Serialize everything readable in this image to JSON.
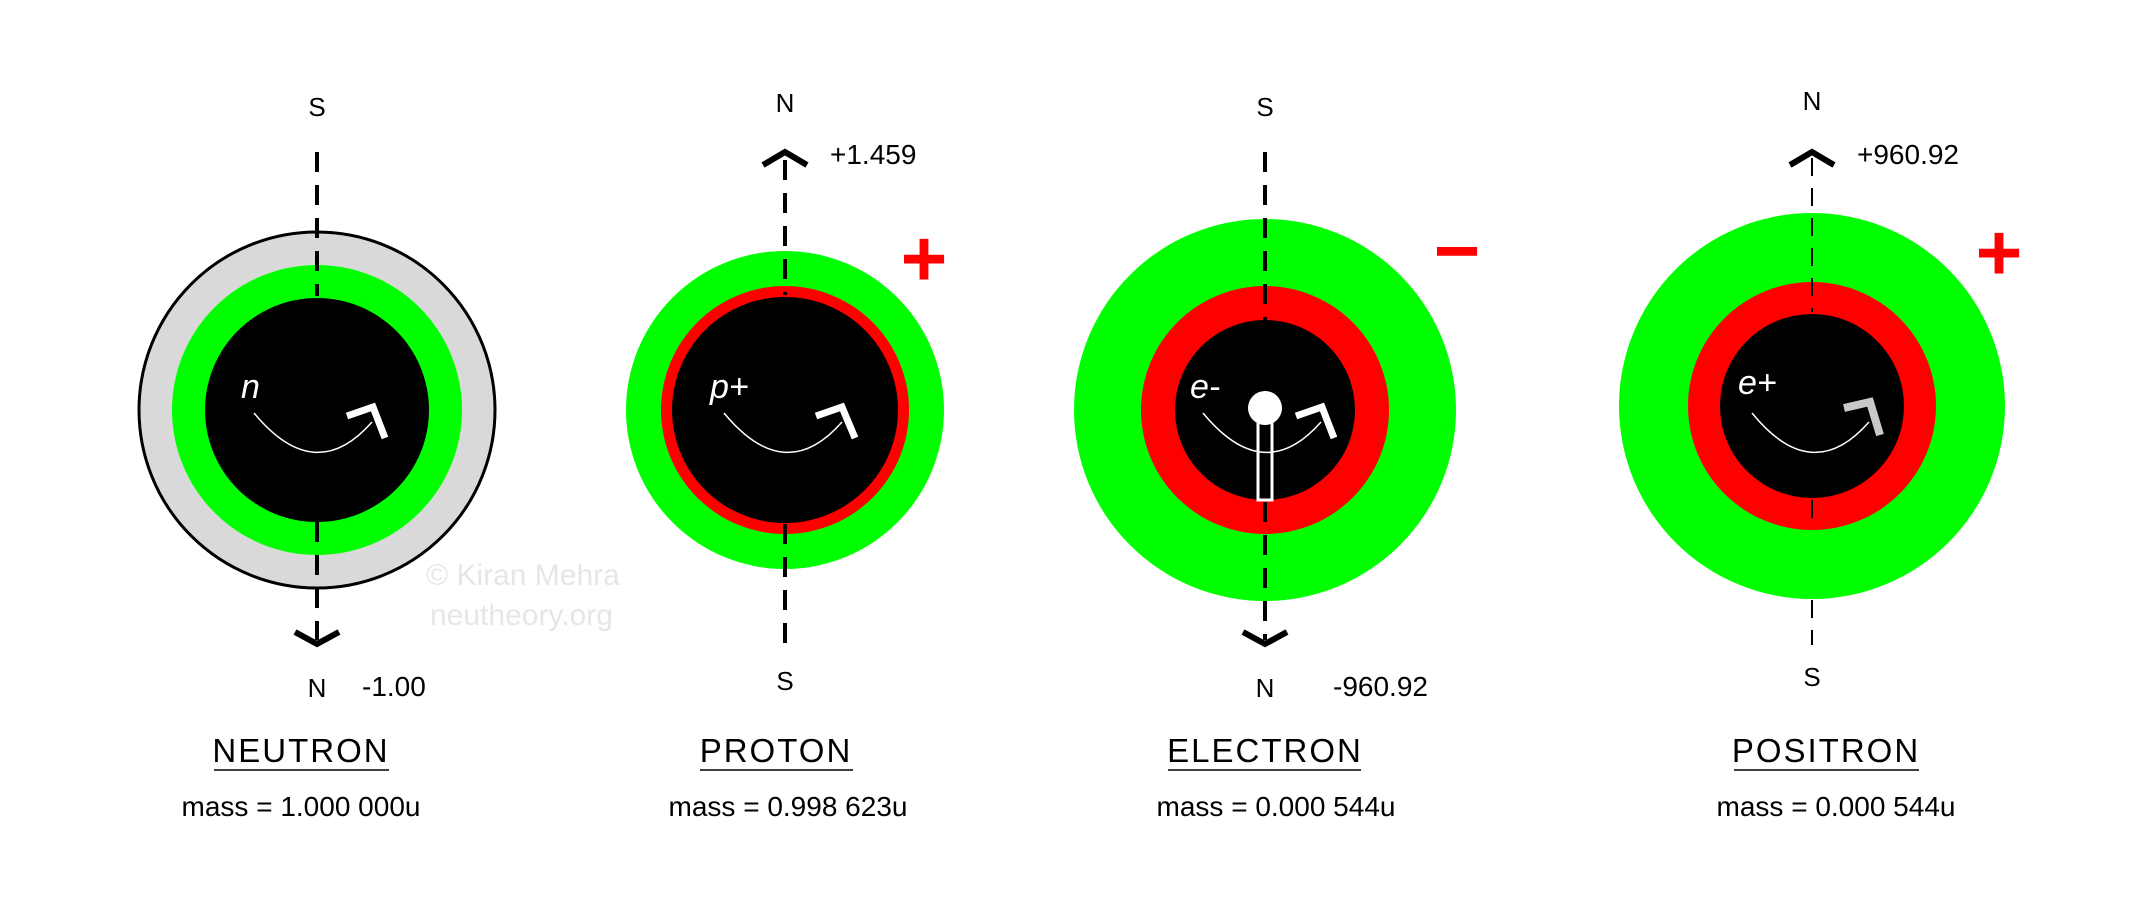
{
  "particles": [
    {
      "name": "NEUTRON",
      "mass": "mass = 1.000 000u",
      "top_pole": "S",
      "bottom_pole": "N",
      "moment": "-1.00",
      "inner_label": "n",
      "sign": "",
      "colors": {
        "outer": "#d9d9d9",
        "middle": "#00ff00",
        "core": "#000000"
      }
    },
    {
      "name": "PROTON",
      "mass": "mass = 0.998 623u",
      "top_pole": "N",
      "bottom_pole": "S",
      "moment": "+1.459",
      "inner_label": "p+",
      "sign": "+",
      "colors": {
        "outer": "#00ff00",
        "middle": "#ff0000",
        "core": "#000000"
      }
    },
    {
      "name": "ELECTRON",
      "mass": "mass = 0.000 544u",
      "top_pole": "S",
      "bottom_pole": "N",
      "moment": "-960.92",
      "inner_label": "e-",
      "sign": "−",
      "colors": {
        "outer": "#00ff00",
        "middle": "#ff0000",
        "core": "#000000"
      }
    },
    {
      "name": "POSITRON",
      "mass": "mass = 0.000 544u",
      "top_pole": "N",
      "bottom_pole": "S",
      "moment": "+960.92",
      "inner_label": "e+",
      "sign": "+",
      "colors": {
        "outer": "#00ff00",
        "middle": "#ff0000",
        "core": "#000000"
      }
    }
  ],
  "watermark": {
    "line1": "© Kiran Mehra",
    "line2": "neutheory.org"
  },
  "icons": [
    "spin-arrow-icon",
    "magnetic-axis-arrow-icon",
    "charge-sign-icon",
    "spin-pointer-icon"
  ]
}
